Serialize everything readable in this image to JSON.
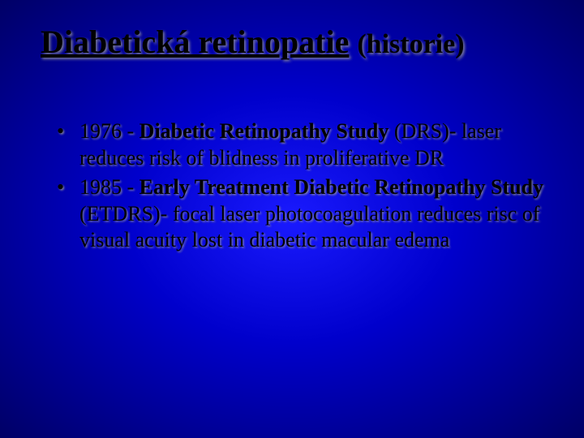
{
  "title": {
    "main": "Diabetická retinopatie",
    "sub": "(historie)"
  },
  "bullets": [
    {
      "prefix": "1976 - ",
      "bold": "Diabetic Retinopathy Study",
      "rest": " (DRS)- laser reduces risk of blidness in proliferative DR"
    },
    {
      "prefix": "1985 - ",
      "bold": "Early Treatment Diabetic Retinopathy Study",
      "rest": " (ETDRS)- focal laser photocoagulation reduces risc of visual acuity lost in diabetic macular edema"
    }
  ],
  "styling": {
    "background_gradient": [
      "#1a1aff",
      "#0000cc",
      "#000099",
      "#000066"
    ],
    "text_color": "#000000",
    "shadow_color": "rgba(153,153,153,0.8)",
    "title_fontsize": 40,
    "sub_fontsize": 34,
    "body_fontsize": 26,
    "font_family": "Times New Roman"
  }
}
